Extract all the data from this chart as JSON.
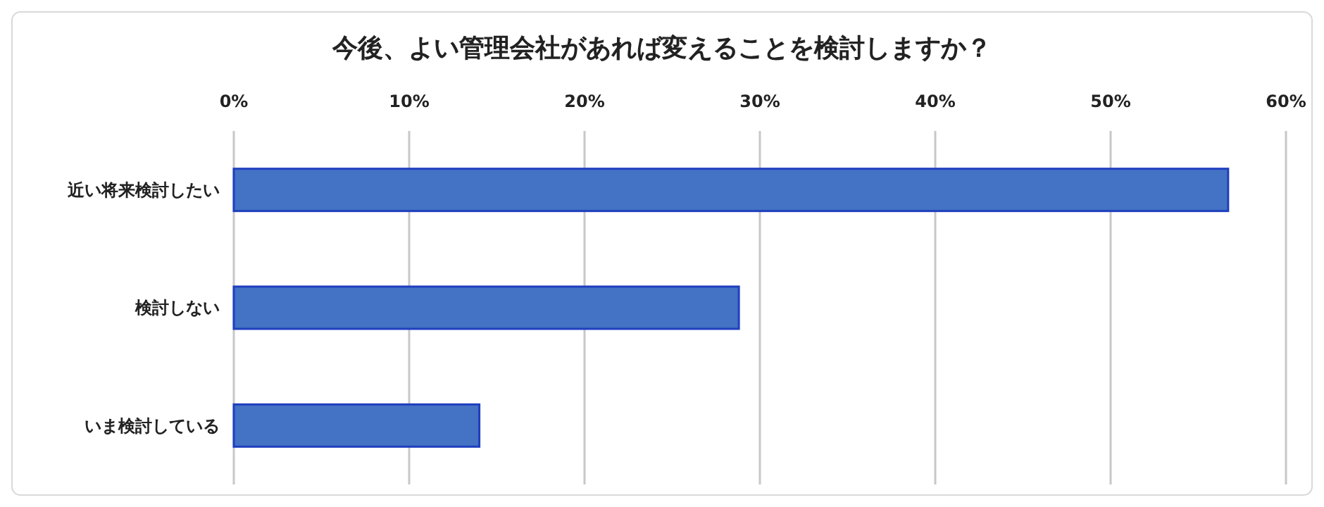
{
  "chart_data": {
    "type": "bar",
    "orientation": "horizontal",
    "title": "今後、よい管理会社があれば変えることを検討しますか？",
    "categories": [
      "近い将来検討したい",
      "検討しない",
      "いま検討している"
    ],
    "values": [
      0.567,
      0.288,
      0.14
    ],
    "color": "#4472c4",
    "xlim": [
      0,
      0.6
    ],
    "xticks": [
      {
        "value": 0,
        "label": "0%"
      },
      {
        "value": 0.1,
        "label": "10%"
      },
      {
        "value": 0.2,
        "label": "20%"
      },
      {
        "value": 0.3,
        "label": "30%"
      },
      {
        "value": 0.4,
        "label": "40%"
      },
      {
        "value": 0.5,
        "label": "50%"
      },
      {
        "value": 0.6,
        "label": "60%"
      }
    ],
    "grid": "x"
  }
}
